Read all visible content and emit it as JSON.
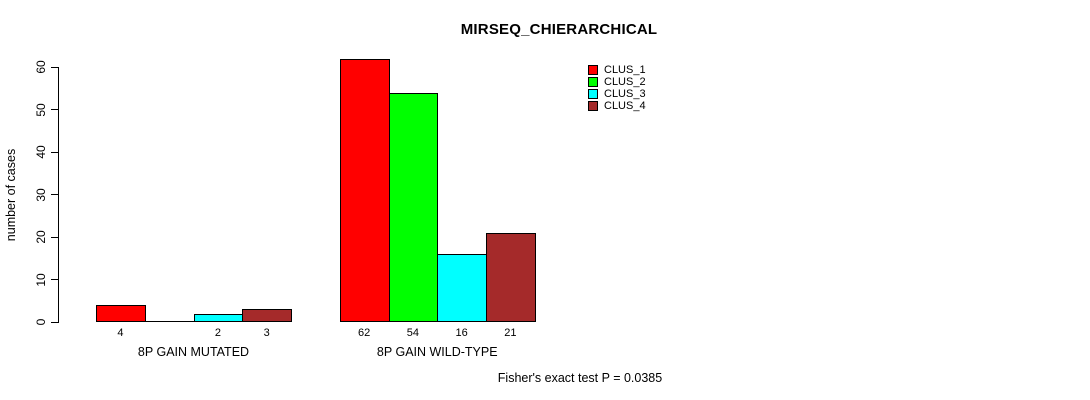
{
  "chart_data": {
    "type": "bar",
    "title": "MIRSEQ_CHIERARCHICAL",
    "ylabel": "number of cases",
    "ylim": [
      0,
      60
    ],
    "yticks": [
      0,
      10,
      20,
      30,
      40,
      50,
      60
    ],
    "grid": false,
    "series": [
      "CLUS_1",
      "CLUS_2",
      "CLUS_3",
      "CLUS_4"
    ],
    "series_colors": [
      "#FF0000",
      "#00FF00",
      "#00FFFF",
      "#A52A2A"
    ],
    "categories": [
      "8P GAIN MUTATED",
      "8P GAIN WILD-TYPE"
    ],
    "groups": [
      {
        "label": "8P GAIN MUTATED",
        "values": [
          4,
          0,
          2,
          3
        ],
        "bar_labels": [
          "4",
          "",
          "2",
          "3"
        ]
      },
      {
        "label": "8P GAIN WILD-TYPE",
        "values": [
          62,
          54,
          16,
          21
        ],
        "bar_labels": [
          "62",
          "54",
          "16",
          "21"
        ]
      }
    ],
    "legend": {
      "position": "top-right",
      "entries": [
        {
          "label": "CLUS_1",
          "color": "#FF0000"
        },
        {
          "label": "CLUS_2",
          "color": "#00FF00"
        },
        {
          "label": "CLUS_3",
          "color": "#00FFFF"
        },
        {
          "label": "CLUS_4",
          "color": "#A52A2A"
        }
      ]
    },
    "annotation": "Fisher's exact test P = 0.0385",
    "colors": {
      "background": "#FFFFFF",
      "axis": "#000000",
      "bar_border": "#000000"
    }
  }
}
